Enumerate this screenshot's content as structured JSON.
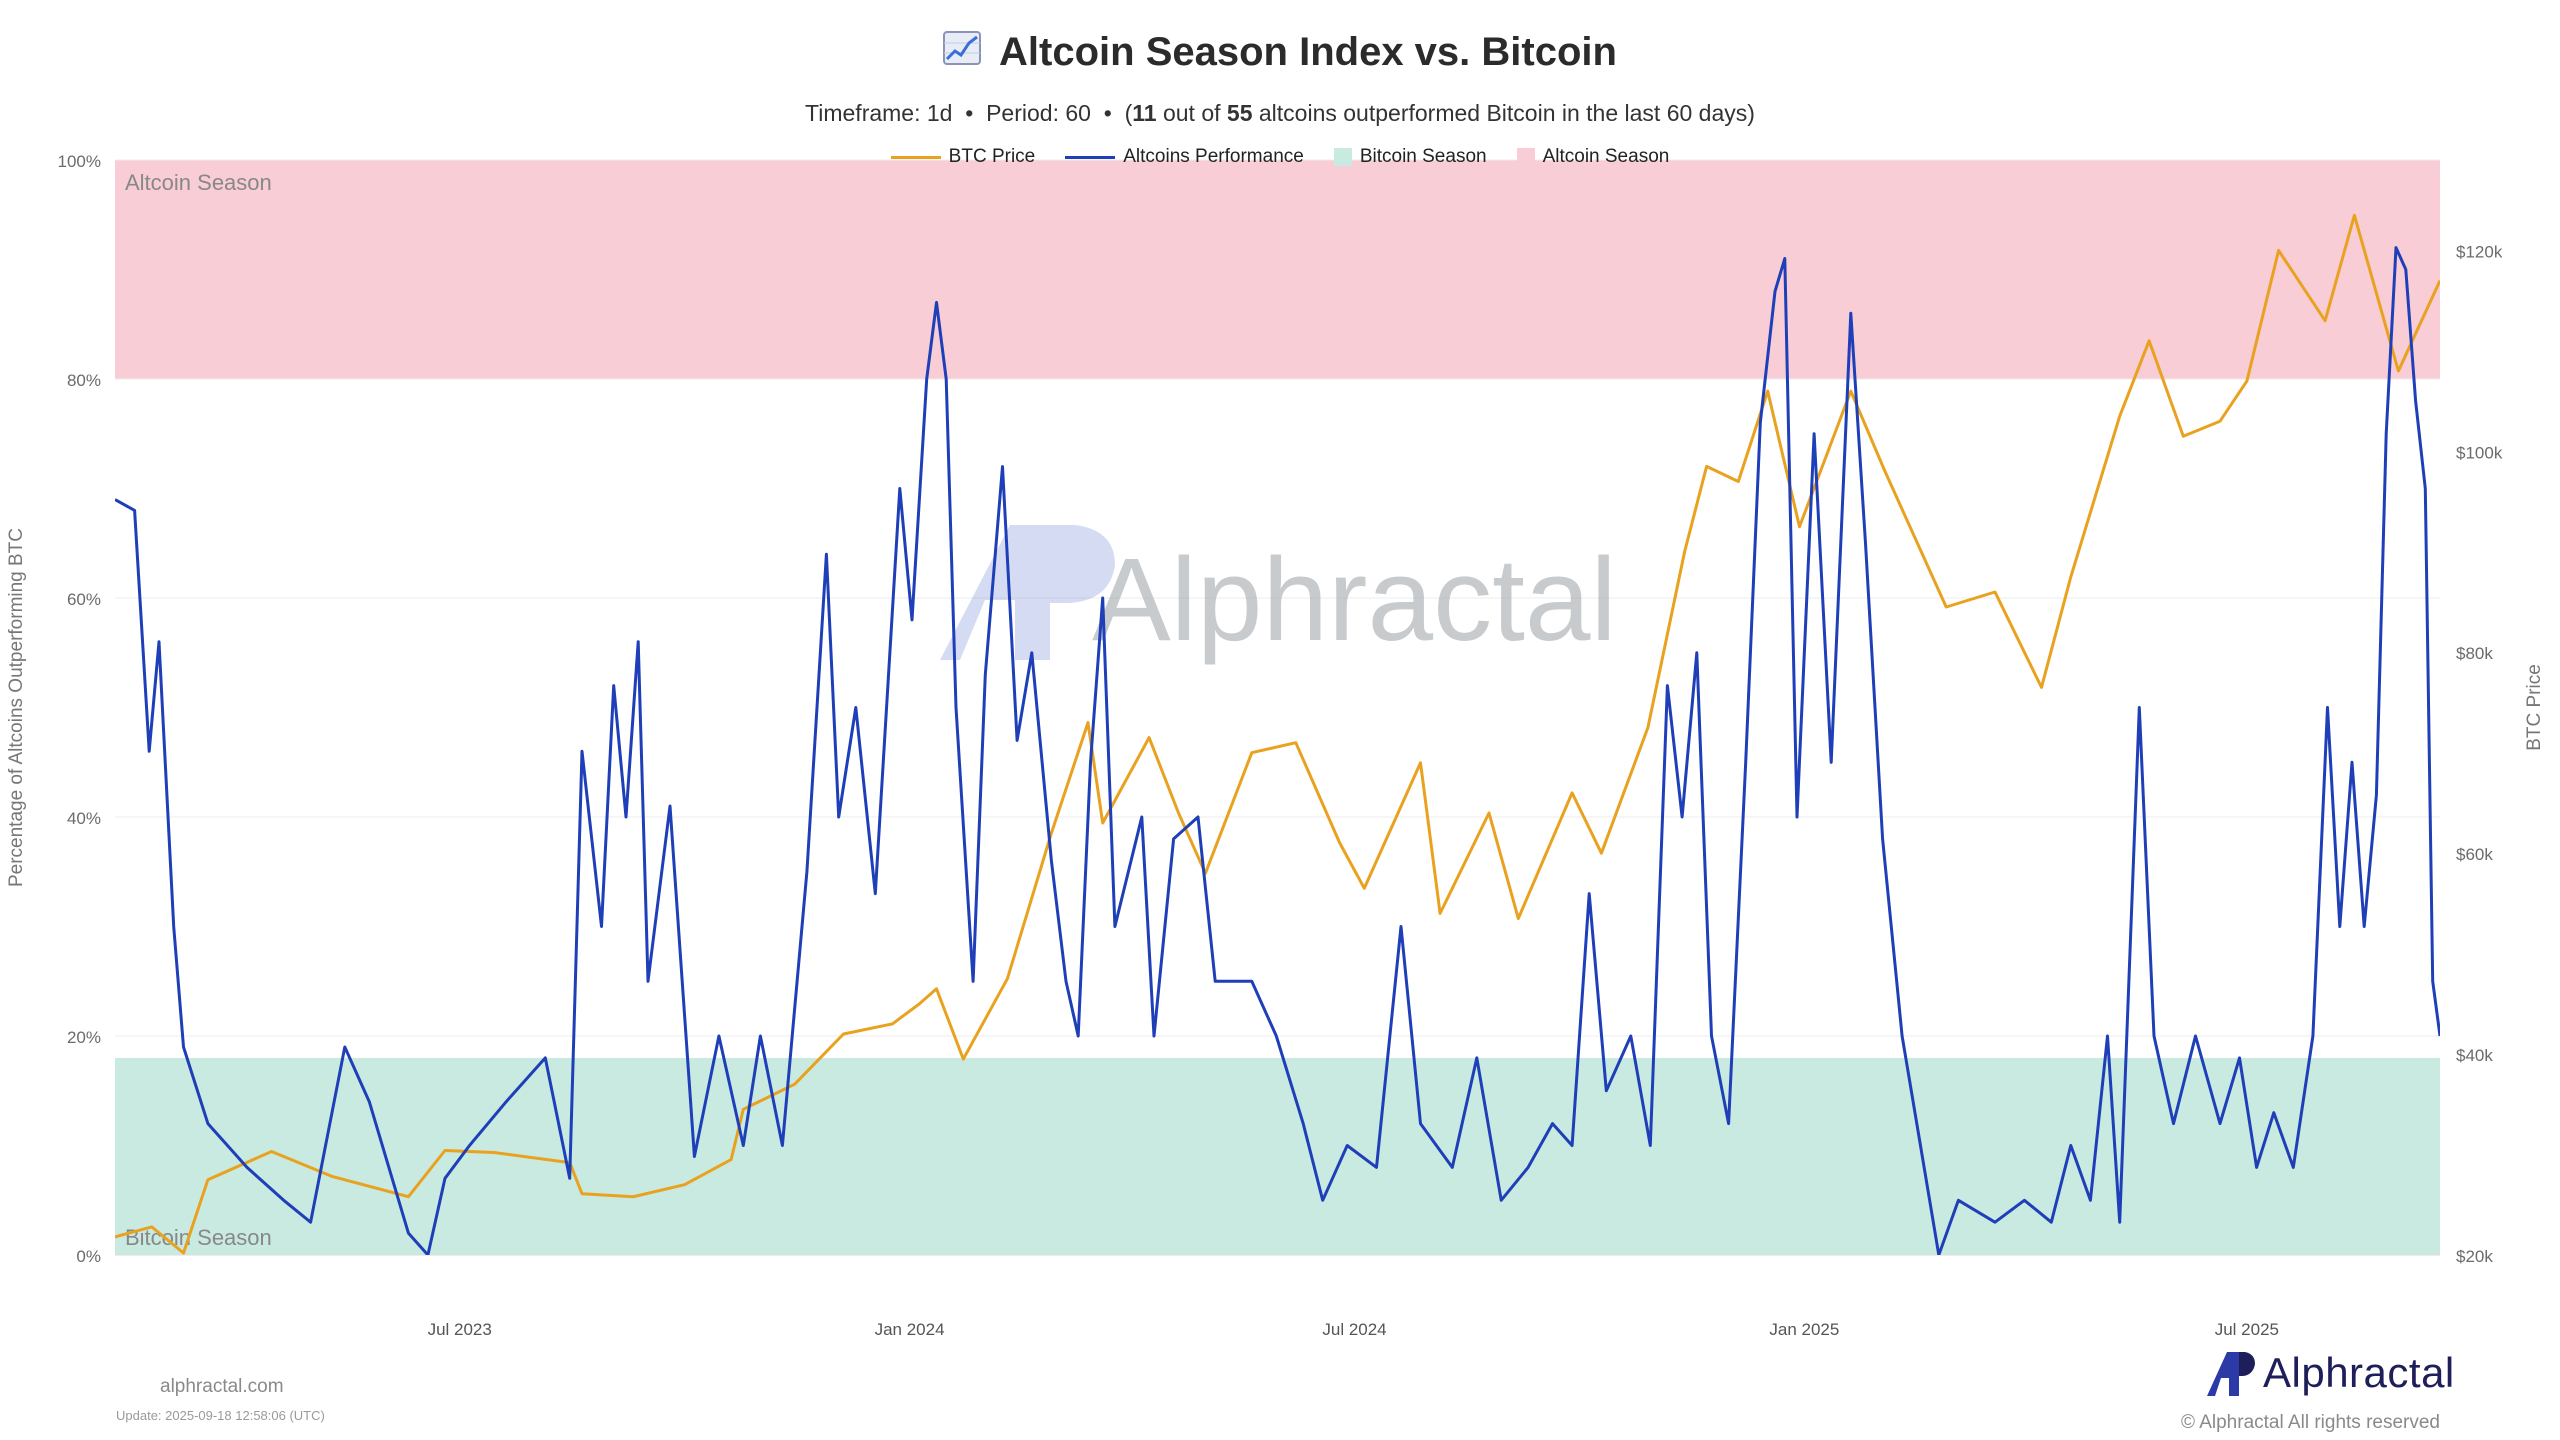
{
  "header": {
    "title": "Altcoin Season Index vs. Bitcoin",
    "subtitle_parts": {
      "timeframe": "Timeframe: 1d",
      "sep": "•",
      "period": "Period: 60",
      "open": "(",
      "count": "11",
      "mid": "out of",
      "total": "55",
      "tail": "altcoins outperformed Bitcoin in the last 60 days)"
    }
  },
  "legend": [
    {
      "label": "BTC Price",
      "kind": "line",
      "color": "#E9A21F"
    },
    {
      "label": "Altcoins Performance",
      "kind": "line",
      "color": "#1F3FB8"
    },
    {
      "label": "Bitcoin Season",
      "kind": "box",
      "color": "#C9EAE1"
    },
    {
      "label": "Altcoin Season",
      "kind": "box",
      "color": "#F8CDD6"
    }
  ],
  "zones": {
    "altcoin_label": "Altcoin Season",
    "bitcoin_label": "Bitcoin Season"
  },
  "watermark": "Alphractal",
  "footer": {
    "site": "alphractal.com",
    "update": "Update: 2025-09-18 12:58:06 (UTC)",
    "copyright": "© Alphractal All rights reserved",
    "brand": "Alphractal"
  },
  "colors": {
    "btc_line": "#E9A21F",
    "altcoin_line": "#1F3FB8",
    "altcoin_zone": "#F8CDD6",
    "bitcoin_zone": "#C9EAE1",
    "grid": "#ececec"
  },
  "chart_data": {
    "type": "line",
    "title": "Altcoin Season Index vs. Bitcoin",
    "ylabel": "Percentage of Altcoins Outperforming BTC",
    "y2label": "BTC Price",
    "ylim": [
      0,
      100
    ],
    "y2lim": [
      20000,
      129000
    ],
    "yticks": [
      "0%",
      "20%",
      "40%",
      "60%",
      "80%",
      "100%"
    ],
    "y2ticks": [
      "$20k",
      "$40k",
      "$60k",
      "$80k",
      "$100k",
      "$120k"
    ],
    "xlim": [
      "2023-02-10",
      "2025-09-18"
    ],
    "xticks": [
      {
        "date": "2023-07-01",
        "label": "Jul 2023"
      },
      {
        "date": "2024-01-01",
        "label": "Jan 2024"
      },
      {
        "date": "2024-07-01",
        "label": "Jul 2024"
      },
      {
        "date": "2025-01-01",
        "label": "Jan 2025"
      },
      {
        "date": "2025-07-01",
        "label": "Jul 2025"
      }
    ],
    "grid": true,
    "legend_position": "top-center",
    "zones": [
      {
        "name": "Altcoin Season",
        "from": 80,
        "to": 100
      },
      {
        "name": "Bitcoin Season",
        "from": 0,
        "to": 18
      }
    ],
    "series": [
      {
        "name": "BTC Price",
        "axis": "right",
        "points": [
          [
            "2023-02-10",
            21800
          ],
          [
            "2023-02-25",
            22800
          ],
          [
            "2023-03-10",
            20200
          ],
          [
            "2023-03-20",
            27500
          ],
          [
            "2023-04-15",
            30300
          ],
          [
            "2023-05-10",
            27800
          ],
          [
            "2023-06-10",
            25800
          ],
          [
            "2023-06-25",
            30400
          ],
          [
            "2023-07-15",
            30200
          ],
          [
            "2023-08-15",
            29200
          ],
          [
            "2023-08-20",
            26100
          ],
          [
            "2023-09-10",
            25800
          ],
          [
            "2023-10-01",
            27000
          ],
          [
            "2023-10-20",
            29500
          ],
          [
            "2023-10-25",
            34500
          ],
          [
            "2023-11-15",
            37000
          ],
          [
            "2023-12-05",
            42000
          ],
          [
            "2023-12-25",
            43000
          ],
          [
            "2024-01-05",
            45000
          ],
          [
            "2024-01-12",
            46500
          ],
          [
            "2024-01-23",
            39500
          ],
          [
            "2024-02-10",
            47500
          ],
          [
            "2024-02-28",
            62000
          ],
          [
            "2024-03-14",
            73000
          ],
          [
            "2024-03-20",
            63000
          ],
          [
            "2024-04-08",
            71500
          ],
          [
            "2024-04-20",
            64000
          ],
          [
            "2024-05-01",
            58000
          ],
          [
            "2024-05-20",
            70000
          ],
          [
            "2024-06-07",
            71000
          ],
          [
            "2024-06-25",
            61000
          ],
          [
            "2024-07-05",
            56500
          ],
          [
            "2024-07-28",
            69000
          ],
          [
            "2024-08-05",
            54000
          ],
          [
            "2024-08-25",
            64000
          ],
          [
            "2024-09-06",
            53500
          ],
          [
            "2024-09-28",
            66000
          ],
          [
            "2024-10-10",
            60000
          ],
          [
            "2024-10-29",
            72500
          ],
          [
            "2024-11-13",
            90000
          ],
          [
            "2024-11-22",
            98500
          ],
          [
            "2024-12-05",
            97000
          ],
          [
            "2024-12-17",
            106000
          ],
          [
            "2024-12-30",
            92500
          ],
          [
            "2025-01-20",
            106000
          ],
          [
            "2025-02-03",
            98000
          ],
          [
            "2025-02-28",
            84500
          ],
          [
            "2025-03-20",
            86000
          ],
          [
            "2025-04-08",
            76500
          ],
          [
            "2025-04-20",
            87500
          ],
          [
            "2025-05-10",
            103500
          ],
          [
            "2025-05-22",
            111000
          ],
          [
            "2025-06-05",
            101500
          ],
          [
            "2025-06-20",
            103000
          ],
          [
            "2025-07-01",
            107000
          ],
          [
            "2025-07-14",
            120000
          ],
          [
            "2025-08-02",
            113000
          ],
          [
            "2025-08-14",
            123500
          ],
          [
            "2025-09-01",
            108000
          ],
          [
            "2025-09-18",
            117000
          ]
        ]
      },
      {
        "name": "Altcoins Performance",
        "axis": "left",
        "points": [
          [
            "2023-02-10",
            69
          ],
          [
            "2023-02-18",
            68
          ],
          [
            "2023-02-24",
            46
          ],
          [
            "2023-02-28",
            56
          ],
          [
            "2023-03-06",
            30
          ],
          [
            "2023-03-10",
            19
          ],
          [
            "2023-03-20",
            12
          ],
          [
            "2023-04-05",
            8
          ],
          [
            "2023-04-20",
            5
          ],
          [
            "2023-05-01",
            3
          ],
          [
            "2023-05-15",
            19
          ],
          [
            "2023-05-25",
            14
          ],
          [
            "2023-06-10",
            2
          ],
          [
            "2023-06-18",
            0
          ],
          [
            "2023-06-25",
            7
          ],
          [
            "2023-07-05",
            10
          ],
          [
            "2023-07-20",
            14
          ],
          [
            "2023-08-05",
            18
          ],
          [
            "2023-08-15",
            7
          ],
          [
            "2023-08-20",
            46
          ],
          [
            "2023-08-28",
            30
          ],
          [
            "2023-09-02",
            52
          ],
          [
            "2023-09-07",
            40
          ],
          [
            "2023-09-12",
            56
          ],
          [
            "2023-09-16",
            25
          ],
          [
            "2023-09-25",
            41
          ],
          [
            "2023-10-05",
            9
          ],
          [
            "2023-10-15",
            20
          ],
          [
            "2023-10-25",
            10
          ],
          [
            "2023-11-01",
            20
          ],
          [
            "2023-11-10",
            10
          ],
          [
            "2023-11-20",
            35
          ],
          [
            "2023-11-28",
            64
          ],
          [
            "2023-12-03",
            40
          ],
          [
            "2023-12-10",
            50
          ],
          [
            "2023-12-18",
            33
          ],
          [
            "2023-12-28",
            70
          ],
          [
            "2024-01-02",
            58
          ],
          [
            "2024-01-08",
            80
          ],
          [
            "2024-01-12",
            87
          ],
          [
            "2024-01-16",
            80
          ],
          [
            "2024-01-20",
            50
          ],
          [
            "2024-01-27",
            25
          ],
          [
            "2024-02-01",
            53
          ],
          [
            "2024-02-08",
            72
          ],
          [
            "2024-02-14",
            47
          ],
          [
            "2024-02-20",
            55
          ],
          [
            "2024-02-28",
            36
          ],
          [
            "2024-03-05",
            25
          ],
          [
            "2024-03-10",
            20
          ],
          [
            "2024-03-15",
            45
          ],
          [
            "2024-03-20",
            60
          ],
          [
            "2024-03-25",
            30
          ],
          [
            "2024-04-05",
            40
          ],
          [
            "2024-04-10",
            20
          ],
          [
            "2024-04-18",
            38
          ],
          [
            "2024-04-28",
            40
          ],
          [
            "2024-05-05",
            25
          ],
          [
            "2024-05-20",
            25
          ],
          [
            "2024-05-30",
            20
          ],
          [
            "2024-06-10",
            12
          ],
          [
            "2024-06-18",
            5
          ],
          [
            "2024-06-28",
            10
          ],
          [
            "2024-07-10",
            8
          ],
          [
            "2024-07-20",
            30
          ],
          [
            "2024-07-28",
            12
          ],
          [
            "2024-08-10",
            8
          ],
          [
            "2024-08-20",
            18
          ],
          [
            "2024-08-30",
            5
          ],
          [
            "2024-09-10",
            8
          ],
          [
            "2024-09-20",
            12
          ],
          [
            "2024-09-28",
            10
          ],
          [
            "2024-10-05",
            33
          ],
          [
            "2024-10-12",
            15
          ],
          [
            "2024-10-22",
            20
          ],
          [
            "2024-10-30",
            10
          ],
          [
            "2024-11-06",
            52
          ],
          [
            "2024-11-12",
            40
          ],
          [
            "2024-11-18",
            55
          ],
          [
            "2024-11-24",
            20
          ],
          [
            "2024-12-01",
            12
          ],
          [
            "2024-12-08",
            45
          ],
          [
            "2024-12-14",
            76
          ],
          [
            "2024-12-20",
            88
          ],
          [
            "2024-12-24",
            91
          ],
          [
            "2024-12-29",
            40
          ],
          [
            "2025-01-05",
            75
          ],
          [
            "2025-01-12",
            45
          ],
          [
            "2025-01-20",
            86
          ],
          [
            "2025-01-26",
            65
          ],
          [
            "2025-02-02",
            38
          ],
          [
            "2025-02-10",
            20
          ],
          [
            "2025-02-16",
            12
          ],
          [
            "2025-02-25",
            0
          ],
          [
            "2025-03-05",
            5
          ],
          [
            "2025-03-20",
            3
          ],
          [
            "2025-04-01",
            5
          ],
          [
            "2025-04-12",
            3
          ],
          [
            "2025-04-20",
            10
          ],
          [
            "2025-04-28",
            5
          ],
          [
            "2025-05-05",
            20
          ],
          [
            "2025-05-10",
            3
          ],
          [
            "2025-05-18",
            50
          ],
          [
            "2025-05-24",
            20
          ],
          [
            "2025-06-01",
            12
          ],
          [
            "2025-06-10",
            20
          ],
          [
            "2025-06-20",
            12
          ],
          [
            "2025-06-28",
            18
          ],
          [
            "2025-07-05",
            8
          ],
          [
            "2025-07-12",
            13
          ],
          [
            "2025-07-20",
            8
          ],
          [
            "2025-07-28",
            20
          ],
          [
            "2025-08-03",
            50
          ],
          [
            "2025-08-08",
            30
          ],
          [
            "2025-08-13",
            45
          ],
          [
            "2025-08-18",
            30
          ],
          [
            "2025-08-23",
            42
          ],
          [
            "2025-08-27",
            75
          ],
          [
            "2025-08-31",
            92
          ],
          [
            "2025-09-04",
            90
          ],
          [
            "2025-09-08",
            78
          ],
          [
            "2025-09-12",
            70
          ],
          [
            "2025-09-15",
            25
          ],
          [
            "2025-09-18",
            20
          ]
        ]
      }
    ]
  }
}
